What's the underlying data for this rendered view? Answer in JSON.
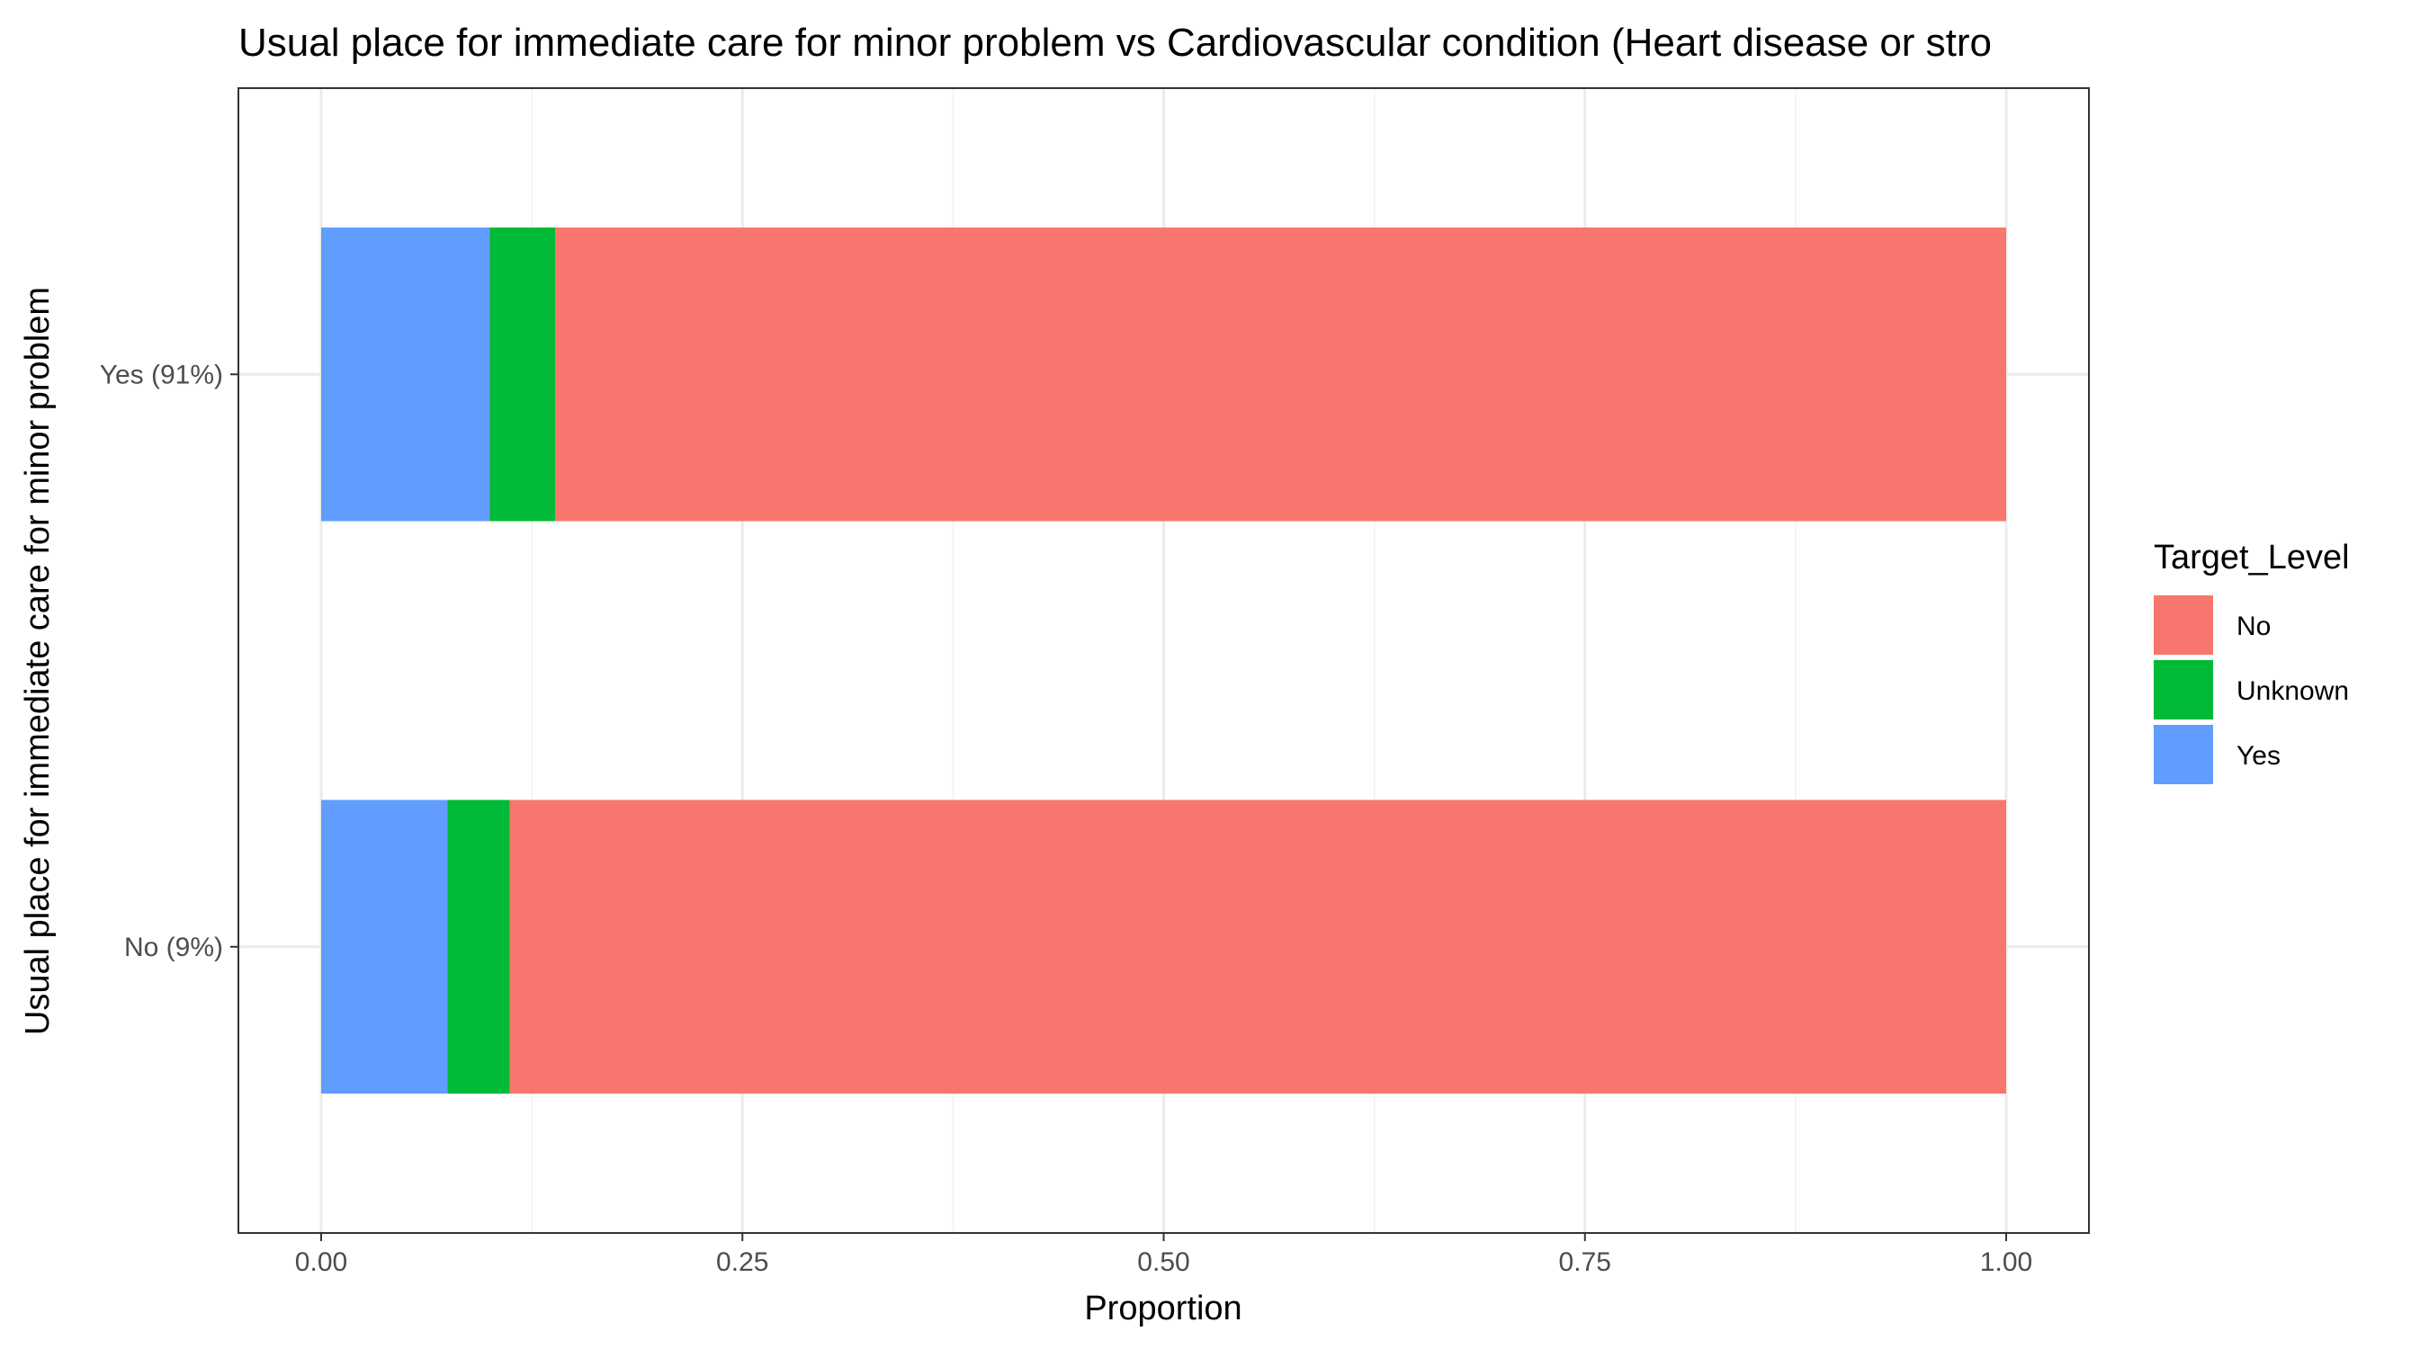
{
  "chart_data": {
    "type": "bar",
    "orientation": "horizontal",
    "stacked": true,
    "title": "Usual place for immediate care for minor problem vs Cardiovascular condition (Heart disease or stro",
    "xlabel": "Proportion",
    "ylabel": "Usual place for immediate care for minor problem",
    "xlim": [
      0,
      1
    ],
    "x_ticks": [
      "0.00",
      "0.25",
      "0.50",
      "0.75",
      "1.00"
    ],
    "categories": [
      "No (9%)",
      "Yes (91%)"
    ],
    "series": [
      {
        "name": "Yes",
        "values": [
          0.075,
          0.1
        ],
        "color": "#619CFF"
      },
      {
        "name": "Unknown",
        "values": [
          0.037,
          0.039
        ],
        "color": "#00BA38"
      },
      {
        "name": "No",
        "values": [
          0.888,
          0.861
        ],
        "color": "#F8766D"
      }
    ],
    "legend": {
      "title": "Target_Level",
      "position": "right",
      "items": [
        {
          "label": "No",
          "color": "#F8766D"
        },
        {
          "label": "Unknown",
          "color": "#00BA38"
        },
        {
          "label": "Yes",
          "color": "#619CFF"
        }
      ]
    },
    "grid": true,
    "theme": "bw"
  }
}
